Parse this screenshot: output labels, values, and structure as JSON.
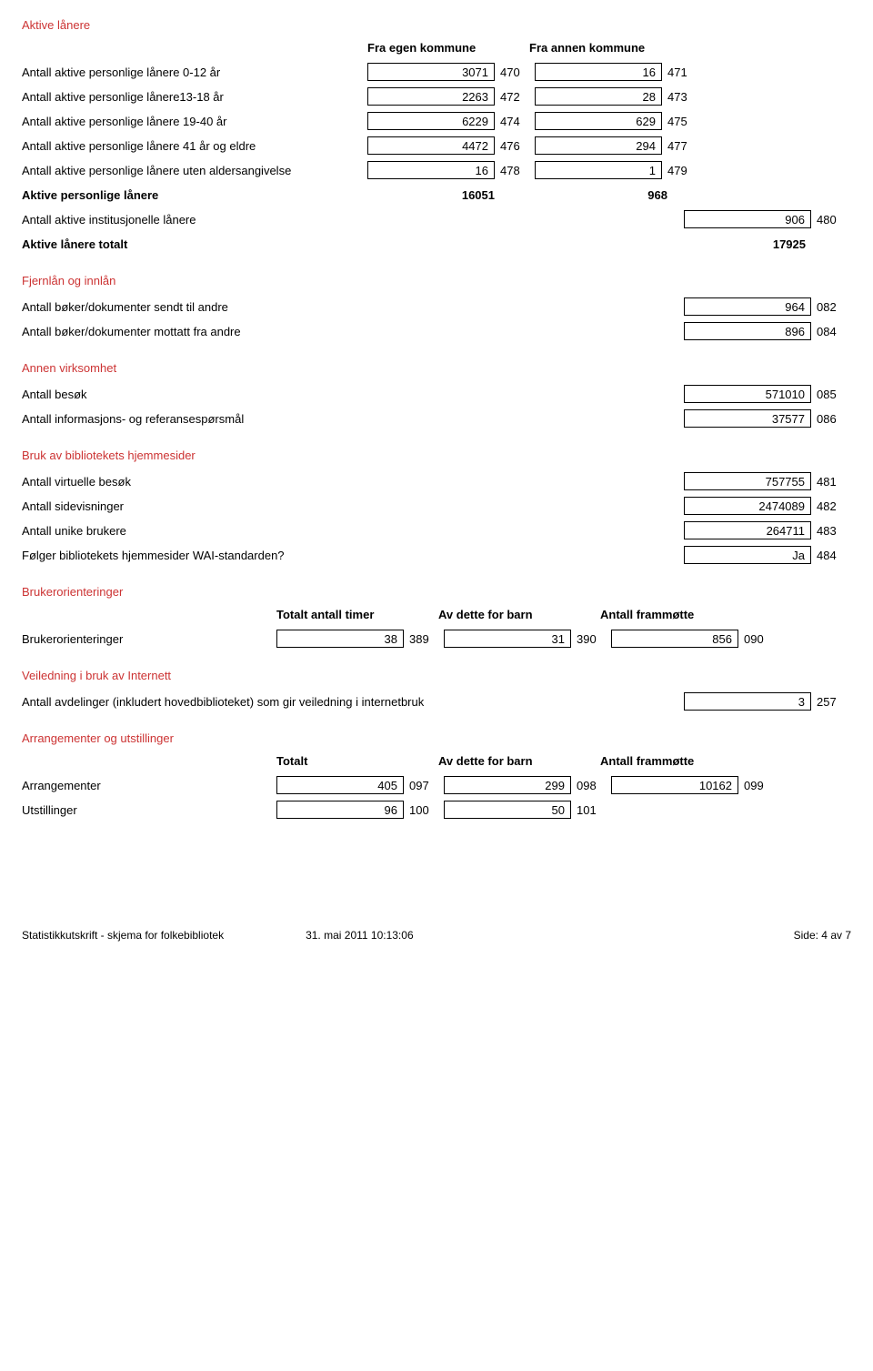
{
  "sections": {
    "aktive_lanere": {
      "title": "Aktive lånere",
      "col1": "Fra egen kommune",
      "col2": "Fra annen kommune",
      "rows": [
        {
          "label": "Antall aktive personlige lånere 0-12 år",
          "v1": "3071",
          "c1": "470",
          "v2": "16",
          "c2": "471"
        },
        {
          "label": "Antall aktive personlige lånere13-18 år",
          "v1": "2263",
          "c1": "472",
          "v2": "28",
          "c2": "473"
        },
        {
          "label": "Antall aktive personlige lånere 19-40 år",
          "v1": "6229",
          "c1": "474",
          "v2": "629",
          "c2": "475"
        },
        {
          "label": "Antall aktive personlige lånere 41 år og eldre",
          "v1": "4472",
          "c1": "476",
          "v2": "294",
          "c2": "477"
        },
        {
          "label": "Antall aktive personlige lånere uten aldersangivelse",
          "v1": "16",
          "c1": "478",
          "v2": "1",
          "c2": "479"
        }
      ],
      "sum1_label": "Aktive personlige lånere",
      "sum1_v1": "16051",
      "sum1_v2": "968",
      "inst_label": "Antall aktive institusjonelle lånere",
      "inst_v": "906",
      "inst_c": "480",
      "total_label": "Aktive lånere totalt",
      "total_v": "17925"
    },
    "fjernlan": {
      "title": "Fjernlån og innlån",
      "rows": [
        {
          "label": "Antall bøker/dokumenter sendt til andre",
          "v": "964",
          "c": "082"
        },
        {
          "label": "Antall bøker/dokumenter mottatt fra andre",
          "v": "896",
          "c": "084"
        }
      ]
    },
    "annen": {
      "title": "Annen virksomhet",
      "rows": [
        {
          "label": "Antall besøk",
          "v": "571010",
          "c": "085"
        },
        {
          "label": "Antall informasjons- og referansespørsmål",
          "v": "37577",
          "c": "086"
        }
      ]
    },
    "bruk": {
      "title": "Bruk av bibliotekets hjemmesider",
      "rows": [
        {
          "label": "Antall virtuelle besøk",
          "v": "757755",
          "c": "481"
        },
        {
          "label": "Antall sidevisninger",
          "v": "2474089",
          "c": "482"
        },
        {
          "label": "Antall unike brukere",
          "v": "264711",
          "c": "483"
        },
        {
          "label": "Følger bibliotekets hjemmesider WAI-standarden?",
          "v": "Ja",
          "c": "484"
        }
      ]
    },
    "brukerorient": {
      "title": "Brukerorienteringer",
      "col1": "Totalt antall timer",
      "col2": "Av dette for barn",
      "col3": "Antall frammøtte",
      "row_label": "Brukerorienteringer",
      "v1": "38",
      "c1": "389",
      "v2": "31",
      "c2": "390",
      "v3": "856",
      "c3": "090"
    },
    "veiledning": {
      "title": "Veiledning i bruk av Internett",
      "label": "Antall avdelinger (inkludert hovedbiblioteket) som gir veiledning i internetbruk",
      "v": "3",
      "c": "257"
    },
    "arrang": {
      "title": "Arrangementer og utstillinger",
      "col1": "Totalt",
      "col2": "Av dette for barn",
      "col3": "Antall frammøtte",
      "rows": [
        {
          "label": "Arrangementer",
          "v1": "405",
          "c1": "097",
          "v2": "299",
          "c2": "098",
          "v3": "10162",
          "c3": "099"
        },
        {
          "label": "Utstillinger",
          "v1": "96",
          "c1": "100",
          "v2": "50",
          "c2": "101",
          "v3": "",
          "c3": ""
        }
      ]
    }
  },
  "footer": {
    "left": "Statistikkutskrift - skjema for folkebibliotek",
    "mid": "31. mai 2011 10:13:06",
    "right": "Side:   4   av   7"
  }
}
